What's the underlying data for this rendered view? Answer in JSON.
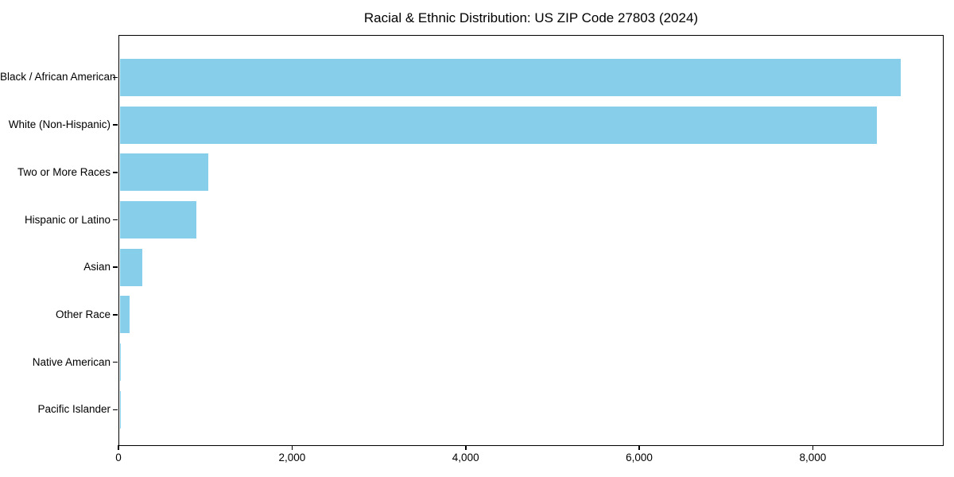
{
  "chart_data": {
    "type": "bar",
    "orientation": "horizontal",
    "title": "Racial & Ethnic Distribution: US ZIP Code 27803 (2024)",
    "categories": [
      "Black / African American",
      "White (Non-Hispanic)",
      "Two or More Races",
      "Hispanic or Latino",
      "Asian",
      "Other Race",
      "Native American",
      "Pacific Islander"
    ],
    "values": [
      9000,
      8725,
      1020,
      880,
      260,
      110,
      10,
      3
    ],
    "xlabel": "",
    "ylabel": "",
    "xlim": [
      0,
      9480
    ],
    "x_ticks": [
      0,
      2000,
      4000,
      6000,
      8000
    ],
    "x_tick_labels": [
      "0",
      "2,000",
      "4,000",
      "6,000",
      "8,000"
    ],
    "bar_color": "#87CEEB",
    "axis_color": "#000000",
    "text_color": "#000000",
    "grid": false,
    "legend": "none",
    "categories_order": "largest value at top"
  }
}
